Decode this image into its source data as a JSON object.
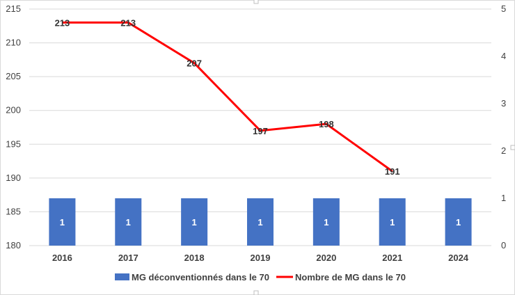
{
  "chart_data": {
    "type": "bar+line",
    "categories": [
      "2016",
      "2017",
      "2018",
      "2019",
      "2020",
      "2021",
      "2024"
    ],
    "y_left": {
      "min": 180,
      "max": 215,
      "step": 5,
      "ticks": [
        "180",
        "185",
        "190",
        "195",
        "200",
        "205",
        "210",
        "215"
      ]
    },
    "y_right": {
      "min": 0,
      "max": 5,
      "step": 1,
      "ticks": [
        "0",
        "1",
        "2",
        "3",
        "4",
        "5"
      ]
    },
    "grid": true,
    "legend_position": "bottom",
    "series": [
      {
        "name": "MG déconventionnés dans le 70",
        "type": "bar",
        "axis": "right",
        "color": "#4472c4",
        "values": [
          1,
          1,
          1,
          1,
          1,
          1,
          1
        ],
        "labels": [
          "1",
          "1",
          "1",
          "1",
          "1",
          "1",
          "1"
        ]
      },
      {
        "name": "Nombre de MG dans le 70",
        "type": "line",
        "axis": "left",
        "color": "#ff0000",
        "values": [
          213,
          213,
          207,
          197,
          198,
          191,
          null
        ],
        "labels": [
          "213",
          "213",
          "207",
          "197",
          "198",
          "191",
          ""
        ]
      }
    ]
  }
}
